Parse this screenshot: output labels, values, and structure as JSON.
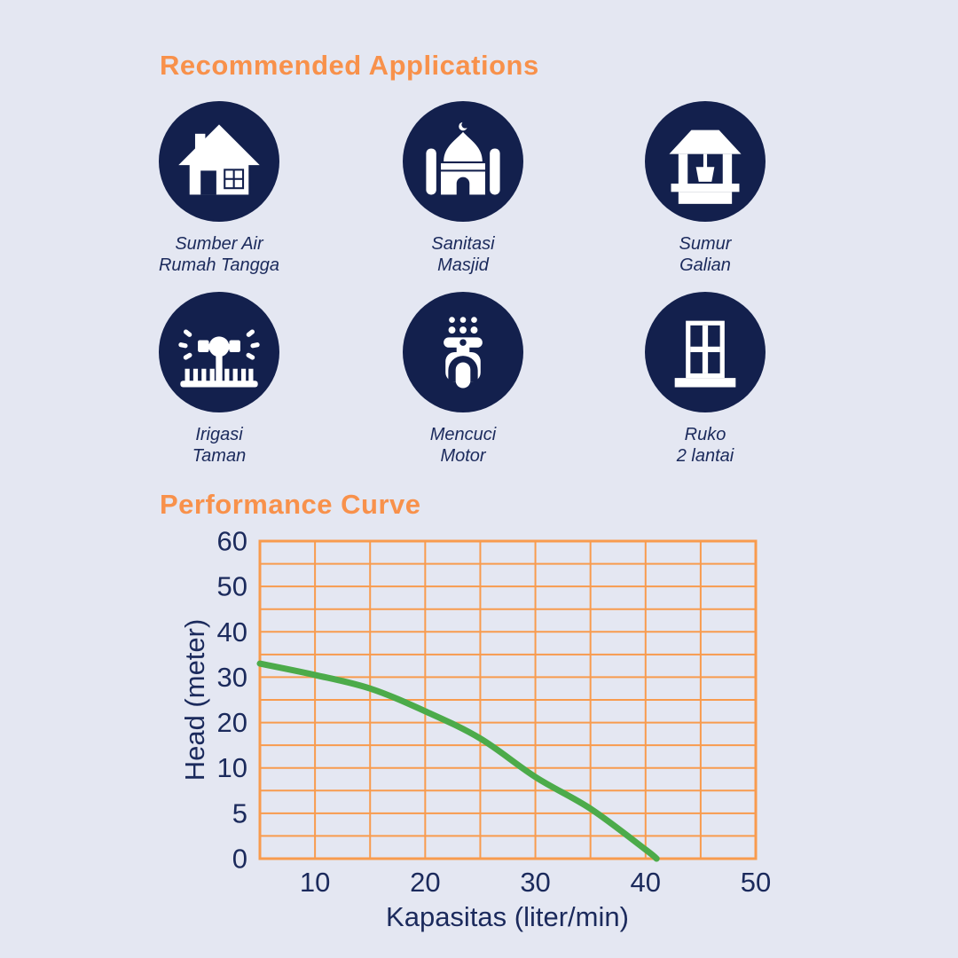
{
  "applications": {
    "title": "Recommended Applications",
    "items": [
      {
        "icon": "house-icon",
        "label": [
          "Sumber Air",
          "Rumah Tangga"
        ]
      },
      {
        "icon": "mosque-icon",
        "label": [
          "Sanitasi",
          "Masjid"
        ]
      },
      {
        "icon": "well-icon",
        "label": [
          "Sumur",
          "Galian"
        ]
      },
      {
        "icon": "sprinkler-icon",
        "label": [
          "Irigasi",
          "Taman"
        ]
      },
      {
        "icon": "scooter-icon",
        "label": [
          "Mencuci",
          "Motor"
        ]
      },
      {
        "icon": "building-icon",
        "label": [
          "Ruko",
          "2 lantai"
        ]
      }
    ]
  },
  "performance": {
    "title": "Performance Curve"
  },
  "chart_data": {
    "type": "line",
    "title": "",
    "xlabel": "Kapasitas (liter/min)",
    "ylabel": "Head (meter)",
    "x_range": [
      5,
      50
    ],
    "x_grid_step": 5,
    "x_ticks": [
      10,
      20,
      30,
      40,
      50
    ],
    "y_ticks": [
      0,
      5,
      10,
      20,
      30,
      40,
      50,
      60
    ],
    "y_axis_note": "tick labels 0,5,10,20,30,40,50,60 are equally spaced: gridlines every 2.5 m below 10 and every 5 m above 10 (broken scale), 15 horizontal gridlines total",
    "grid": true,
    "legend": "none",
    "points": [
      [
        5,
        33
      ],
      [
        10,
        30.5
      ],
      [
        15,
        27.5
      ],
      [
        20,
        22.5
      ],
      [
        25,
        16.5
      ],
      [
        30,
        9
      ],
      [
        35,
        5.5
      ],
      [
        40,
        1
      ],
      [
        41,
        0
      ]
    ]
  },
  "colors": {
    "background": "#e4e7f2",
    "heading_orange": "#f8914b",
    "navy": "#13204d",
    "text_navy": "#1b2a5c",
    "grid_orange": "#f89b4e",
    "curve_green": "#4cab4a",
    "icon_glyph": "#ffffff"
  }
}
